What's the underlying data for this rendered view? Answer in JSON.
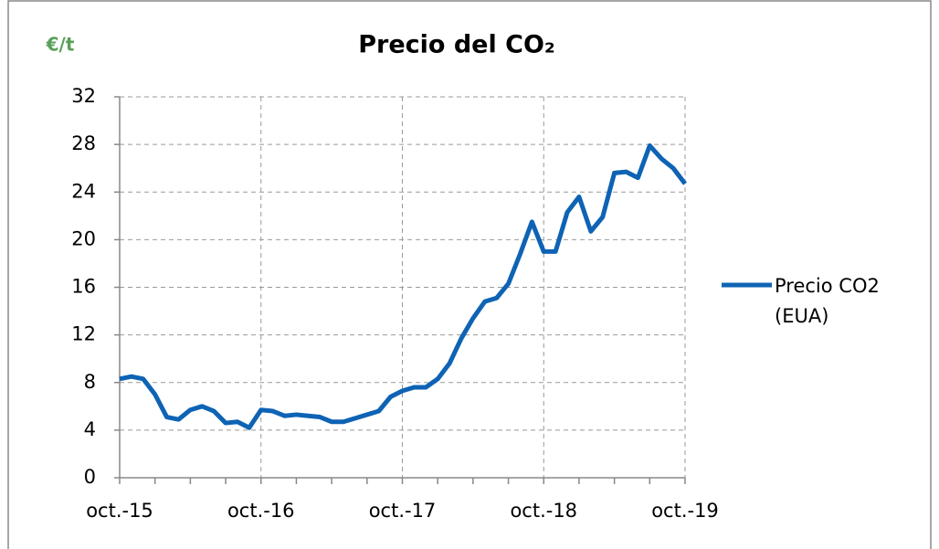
{
  "chart_data": {
    "type": "line",
    "title": "Precio del CO₂",
    "y_unit_label": "€/t",
    "categories": [
      "oct.-15",
      null,
      null,
      null,
      null,
      null,
      null,
      null,
      null,
      null,
      null,
      null,
      "oct.-16",
      null,
      null,
      null,
      null,
      null,
      null,
      null,
      null,
      null,
      null,
      null,
      "oct.-17",
      null,
      null,
      null,
      null,
      null,
      null,
      null,
      null,
      null,
      null,
      null,
      "oct.-18",
      null,
      null,
      null,
      null,
      null,
      null,
      null,
      null,
      null,
      null,
      null,
      "oct.-19"
    ],
    "series": [
      {
        "name": "Precio CO2 (EUA)",
        "color": "#0e63b4",
        "values": [
          8.3,
          8.5,
          8.3,
          7.0,
          5.1,
          4.9,
          5.7,
          6.0,
          5.6,
          4.6,
          4.7,
          4.2,
          5.7,
          5.6,
          5.2,
          5.3,
          5.2,
          5.1,
          4.7,
          4.7,
          5.0,
          5.3,
          5.6,
          6.8,
          7.3,
          7.6,
          7.6,
          8.3,
          9.6,
          11.7,
          13.4,
          14.8,
          15.1,
          16.3,
          18.8,
          21.5,
          19.0,
          19.0,
          22.3,
          23.6,
          20.7,
          21.9,
          25.6,
          25.7,
          25.2,
          27.9,
          26.8,
          26.0,
          24.7
        ]
      }
    ],
    "ylim": [
      0,
      32
    ],
    "yticks": [
      0,
      4,
      8,
      12,
      16,
      20,
      24,
      28,
      32
    ],
    "grid": true,
    "legend": "right"
  }
}
